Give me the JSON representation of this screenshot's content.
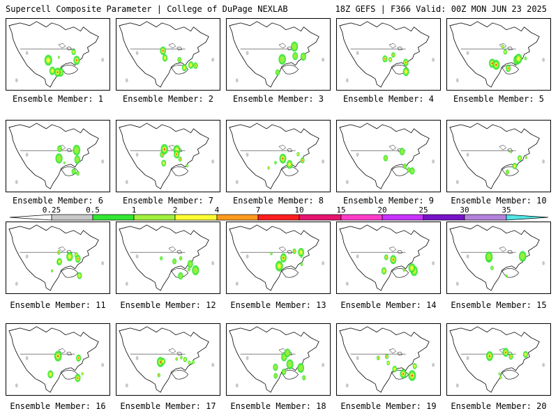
{
  "header": {
    "left": "Supercell Composite Parameter | College of DuPage NEXLAB",
    "right": "18Z GEFS | F366 Valid: 00Z MON JUN 23 2025"
  },
  "panel_label_prefix": "Ensemble Member: ",
  "members": [
    1,
    2,
    3,
    4,
    5,
    6,
    7,
    8,
    9,
    10,
    11,
    12,
    13,
    14,
    15,
    16,
    17,
    18,
    19,
    20
  ],
  "colorbar": {
    "ticks": [
      "0.25",
      "0.5",
      "1",
      "2",
      "4",
      "7",
      "10",
      "15",
      "20",
      "25",
      "30",
      "35"
    ],
    "colors": [
      "#ffffff",
      "#c8c8c8",
      "#32e632",
      "#a0f03c",
      "#ffff32",
      "#ff9a1e",
      "#ff1e1e",
      "#e6146e",
      "#ff3cc8",
      "#c832ff",
      "#7814c8",
      "#b482dc",
      "#50e6e6"
    ]
  },
  "map_colors": {
    "land": "#ffffff",
    "border": "#000000",
    "low": "#c8c8c8",
    "green": "#32e632",
    "lime": "#a0f03c",
    "yellow": "#ffff32",
    "orange": "#ff9a1e",
    "red": "#ff1e1e",
    "magenta": "#e6146e"
  }
}
